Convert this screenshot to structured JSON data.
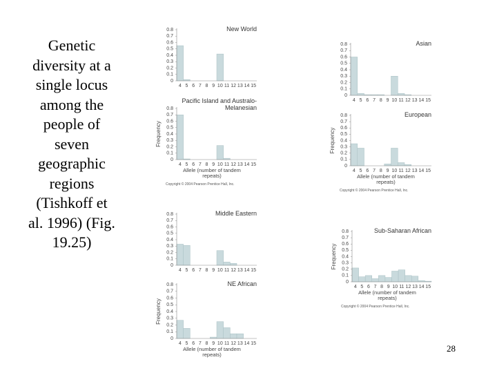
{
  "slide_text": "Genetic diversity at a single locus among the people of seven geographic regions (Tishkoff et al. 1996) (Fig. 19.25)",
  "page_number": "28",
  "chart_data": [
    {
      "type": "bar",
      "title": "New World",
      "categories": [
        "4",
        "5",
        "6",
        "7",
        "8",
        "9",
        "10",
        "11",
        "12",
        "13",
        "14",
        "15"
      ],
      "values": [
        0.55,
        0.02,
        0,
        0,
        0,
        0,
        0.42,
        0,
        0,
        0,
        0,
        0
      ],
      "color": "#c9dadd",
      "ylim": [
        0,
        0.8
      ],
      "yticks": [
        0,
        0.1,
        0.2,
        0.3,
        0.4,
        0.5,
        0.6,
        0.7,
        0.8
      ]
    },
    {
      "type": "bar",
      "title": "Pacific Island and Australo-Melanesian",
      "categories": [
        "4",
        "5",
        "6",
        "7",
        "8",
        "9",
        "10",
        "11",
        "12",
        "13",
        "14",
        "15"
      ],
      "values": [
        0.7,
        0.01,
        0,
        0,
        0,
        0,
        0.22,
        0.02,
        0,
        0,
        0,
        0
      ],
      "color": "#c9dadd",
      "ylim": [
        0,
        0.8
      ],
      "yticks": [
        0,
        0.1,
        0.2,
        0.3,
        0.4,
        0.5,
        0.6,
        0.7,
        0.8
      ],
      "ylabel": "Frequency",
      "xlabel": "Allele (number of tandem repeats)",
      "note": "Copyright © 2004 Pearson Prentice Hall, Inc."
    },
    {
      "type": "bar",
      "title": "Middle Eastern",
      "categories": [
        "4",
        "5",
        "6",
        "7",
        "8",
        "9",
        "10",
        "11",
        "12",
        "13",
        "14",
        "15"
      ],
      "values": [
        0.33,
        0.31,
        0,
        0,
        0,
        0,
        0.23,
        0.05,
        0.03,
        0,
        0,
        0
      ],
      "color": "#c9dadd",
      "ylim": [
        0,
        0.8
      ],
      "yticks": [
        0,
        0.1,
        0.2,
        0.3,
        0.4,
        0.5,
        0.6,
        0.7,
        0.8
      ]
    },
    {
      "type": "bar",
      "title": "NE African",
      "categories": [
        "4",
        "5",
        "6",
        "7",
        "8",
        "9",
        "10",
        "11",
        "12",
        "13",
        "14",
        "15"
      ],
      "values": [
        0.27,
        0.15,
        0,
        0,
        0,
        0.02,
        0.25,
        0.16,
        0.07,
        0.07,
        0,
        0
      ],
      "color": "#c9dadd",
      "ylim": [
        0,
        0.8
      ],
      "yticks": [
        0,
        0.1,
        0.2,
        0.3,
        0.4,
        0.5,
        0.6,
        0.7,
        0.8
      ],
      "ylabel": "Frequency",
      "xlabel": "Allele (number of tandem repeats)"
    },
    {
      "type": "bar",
      "title": "Asian",
      "categories": [
        "4",
        "5",
        "6",
        "7",
        "8",
        "9",
        "10",
        "11",
        "12",
        "13",
        "14",
        "15"
      ],
      "values": [
        0.6,
        0.03,
        0.01,
        0.01,
        0.01,
        0,
        0.3,
        0.03,
        0.01,
        0,
        0,
        0
      ],
      "color": "#c9dadd",
      "ylim": [
        0,
        0.8
      ],
      "yticks": [
        0,
        0.1,
        0.2,
        0.3,
        0.4,
        0.5,
        0.6,
        0.7,
        0.8
      ]
    },
    {
      "type": "bar",
      "title": "European",
      "categories": [
        "4",
        "5",
        "6",
        "7",
        "8",
        "9",
        "10",
        "11",
        "12",
        "13",
        "14",
        "15"
      ],
      "values": [
        0.35,
        0.28,
        0,
        0,
        0,
        0.03,
        0.28,
        0.05,
        0.02,
        0,
        0,
        0
      ],
      "color": "#c9dadd",
      "ylim": [
        0,
        0.8
      ],
      "yticks": [
        0,
        0.1,
        0.2,
        0.3,
        0.4,
        0.5,
        0.6,
        0.7,
        0.8
      ],
      "ylabel": "Frequency",
      "xlabel": "Allele (number of tandem repeats)",
      "note": "Copyright © 2004 Pearson Prentice Hall, Inc."
    },
    {
      "type": "bar",
      "title": "Sub-Saharan African",
      "categories": [
        "4",
        "5",
        "6",
        "7",
        "8",
        "9",
        "10",
        "11",
        "12",
        "13",
        "14",
        "15"
      ],
      "values": [
        0.22,
        0.08,
        0.1,
        0.05,
        0.1,
        0.07,
        0.17,
        0.19,
        0.1,
        0.09,
        0.02,
        0.01
      ],
      "color": "#c9dadd",
      "ylim": [
        0,
        0.8
      ],
      "yticks": [
        0,
        0.1,
        0.2,
        0.3,
        0.4,
        0.5,
        0.6,
        0.7,
        0.8
      ],
      "ylabel": "Frequency",
      "xlabel": "Allele (number of tandem repeats)",
      "note": "Copyright © 2004 Pearson Prentice Hall, Inc."
    }
  ]
}
